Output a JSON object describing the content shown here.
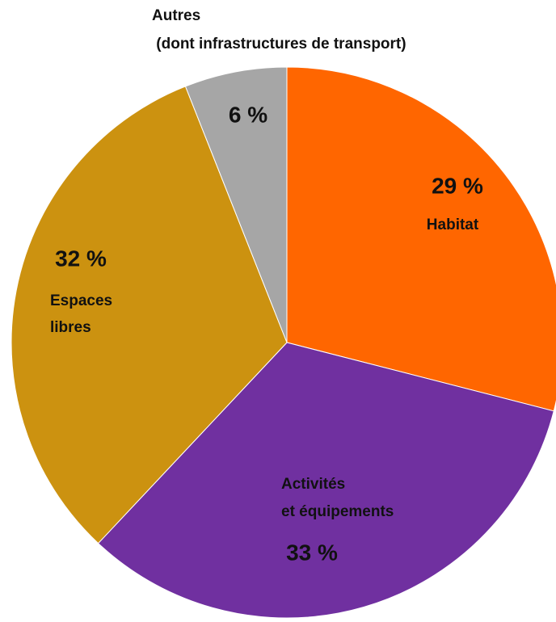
{
  "chart_data": {
    "type": "pie",
    "categories": [
      "Habitat",
      "Activités\net équipements",
      "Espaces\nlibres",
      "Autres\n (dont infrastructures de transport)"
    ],
    "values": [
      29,
      33,
      32,
      6
    ],
    "value_labels": [
      "29 %",
      "33 %",
      "32 %",
      "6 %"
    ],
    "colors": [
      "#ff6600",
      "#7030a0",
      "#cc9210",
      "#a6a6a6"
    ],
    "start_angle": 0,
    "direction": "clockwise"
  }
}
